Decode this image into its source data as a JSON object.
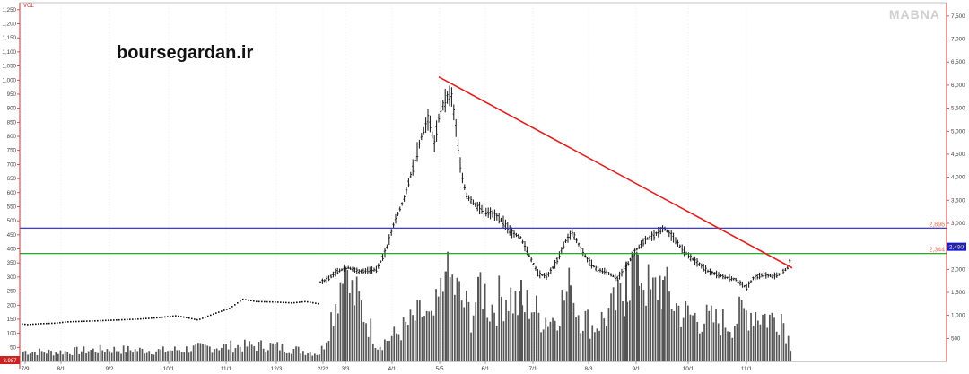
{
  "site_label": "boursegardan.ir",
  "watermark": "MABNA",
  "vol_label": "VOL",
  "colors": {
    "axis": "#cc3333",
    "grid": "#dddddd",
    "price": "#111111",
    "volume": "#555555",
    "trendline": "#e02020",
    "resistance": "#2222cc",
    "support": "#119911",
    "last_badge": "#1a1acc",
    "corner_badge": "#cc2222"
  },
  "chart_data": {
    "type": "bar",
    "left_axis": {
      "label": "VOL",
      "ylim": [
        0,
        1275
      ],
      "ticks": [
        "1,250",
        "1,200",
        "1,150",
        "1,100",
        "1,050",
        "1,000",
        "950",
        "900",
        "850",
        "800",
        "750",
        "700",
        "650",
        "600",
        "550",
        "500",
        "450",
        "400",
        "350",
        "300",
        "250",
        "200",
        "150",
        "100",
        "50"
      ],
      "corner_value": "8.987"
    },
    "right_axis": {
      "ylim": [
        0,
        7790
      ],
      "ticks": [
        "7,500",
        "7,000",
        "6,500",
        "6,000",
        "5,500",
        "5,000",
        "4,500",
        "4,000",
        "3,500",
        "3,000",
        "2,500",
        "2,000",
        "1,500",
        "1,000",
        "500"
      ]
    },
    "x_ticks": [
      "7/9",
      "8/1",
      "9/2",
      "10/1",
      "11/1",
      "12/3",
      "2/22",
      "3/3",
      "4/1",
      "5/5",
      "6/1",
      "7/1",
      "8/3",
      "9/1",
      "10/1",
      "11/1"
    ],
    "price_anchors": [
      [
        0,
        880
      ],
      [
        15,
        830
      ],
      [
        30,
        800
      ],
      [
        45,
        820
      ],
      [
        60,
        830
      ],
      [
        75,
        860
      ],
      [
        90,
        870
      ],
      [
        105,
        880
      ],
      [
        130,
        900
      ],
      [
        155,
        920
      ],
      [
        175,
        950
      ],
      [
        195,
        990
      ],
      [
        205,
        960
      ],
      [
        220,
        900
      ],
      [
        240,
        1050
      ],
      [
        255,
        1150
      ],
      [
        270,
        1350
      ],
      [
        285,
        1300
      ],
      [
        305,
        1290
      ],
      [
        325,
        1270
      ],
      [
        340,
        1300
      ],
      [
        355,
        1250
      ],
      [
        357,
        1720
      ],
      [
        365,
        1780
      ],
      [
        375,
        1950
      ],
      [
        388,
        2040
      ],
      [
        400,
        1950
      ],
      [
        420,
        2000
      ],
      [
        430,
        2400
      ],
      [
        440,
        3050
      ],
      [
        450,
        3500
      ],
      [
        460,
        4200
      ],
      [
        470,
        4900
      ],
      [
        478,
        5300
      ],
      [
        484,
        4700
      ],
      [
        490,
        5400
      ],
      [
        497,
        5700
      ],
      [
        503,
        5800
      ],
      [
        508,
        5100
      ],
      [
        514,
        4100
      ],
      [
        520,
        3600
      ],
      [
        530,
        3400
      ],
      [
        540,
        3250
      ],
      [
        550,
        3200
      ],
      [
        560,
        3050
      ],
      [
        570,
        2800
      ],
      [
        580,
        2700
      ],
      [
        590,
        2300
      ],
      [
        600,
        1900
      ],
      [
        610,
        1850
      ],
      [
        620,
        2150
      ],
      [
        630,
        2600
      ],
      [
        638,
        2800
      ],
      [
        646,
        2500
      ],
      [
        655,
        2200
      ],
      [
        665,
        2000
      ],
      [
        675,
        1950
      ],
      [
        688,
        1800
      ],
      [
        698,
        2050
      ],
      [
        708,
        2400
      ],
      [
        720,
        2650
      ],
      [
        730,
        2750
      ],
      [
        740,
        2900
      ],
      [
        750,
        2700
      ],
      [
        760,
        2450
      ],
      [
        770,
        2250
      ],
      [
        780,
        2100
      ],
      [
        790,
        1950
      ],
      [
        800,
        1880
      ],
      [
        810,
        1820
      ],
      [
        820,
        1780
      ],
      [
        832,
        1600
      ],
      [
        840,
        1820
      ],
      [
        850,
        1880
      ],
      [
        862,
        1850
      ],
      [
        870,
        1900
      ],
      [
        878,
        2040
      ],
      [
        882,
        2300
      ]
    ],
    "ohlc_start_x": 357,
    "volume_anchors": [
      [
        0,
        40
      ],
      [
        60,
        35
      ],
      [
        120,
        45
      ],
      [
        180,
        40
      ],
      [
        240,
        55
      ],
      [
        300,
        60
      ],
      [
        355,
        30
      ],
      [
        360,
        60
      ],
      [
        380,
        320
      ],
      [
        390,
        260
      ],
      [
        400,
        220
      ],
      [
        410,
        140
      ],
      [
        420,
        60
      ],
      [
        440,
        100
      ],
      [
        470,
        180
      ],
      [
        480,
        140
      ],
      [
        490,
        240
      ],
      [
        497,
        320
      ],
      [
        505,
        280
      ],
      [
        515,
        220
      ],
      [
        525,
        170
      ],
      [
        535,
        300
      ],
      [
        545,
        200
      ],
      [
        555,
        230
      ],
      [
        565,
        260
      ],
      [
        580,
        190
      ],
      [
        590,
        220
      ],
      [
        600,
        170
      ],
      [
        615,
        160
      ],
      [
        625,
        220
      ],
      [
        635,
        270
      ],
      [
        645,
        180
      ],
      [
        660,
        130
      ],
      [
        672,
        160
      ],
      [
        685,
        210
      ],
      [
        695,
        250
      ],
      [
        705,
        380
      ],
      [
        715,
        330
      ],
      [
        725,
        240
      ],
      [
        735,
        300
      ],
      [
        745,
        240
      ],
      [
        760,
        180
      ],
      [
        780,
        160
      ],
      [
        800,
        150
      ],
      [
        815,
        140
      ],
      [
        825,
        180
      ],
      [
        840,
        190
      ],
      [
        850,
        170
      ],
      [
        860,
        160
      ],
      [
        870,
        180
      ],
      [
        880,
        60
      ]
    ],
    "volume_spikes": [
      [
        383,
        345
      ],
      [
        384,
        330
      ],
      [
        496,
        320
      ],
      [
        532,
        300
      ],
      [
        580,
        290
      ],
      [
        635,
        270
      ],
      [
        697,
        355
      ],
      [
        710,
        380
      ],
      [
        738,
        290
      ]
    ],
    "horizontal_lines": [
      {
        "kind": "resistance",
        "value": 2896,
        "label": "2,896"
      },
      {
        "kind": "support",
        "value": 2344,
        "label": "2,344"
      }
    ],
    "trendline": {
      "x1": 489,
      "y1": 6180,
      "x2": 883,
      "y2": 2030
    },
    "last_value": {
      "value": 2490,
      "label": "2,490"
    },
    "grid": true
  }
}
